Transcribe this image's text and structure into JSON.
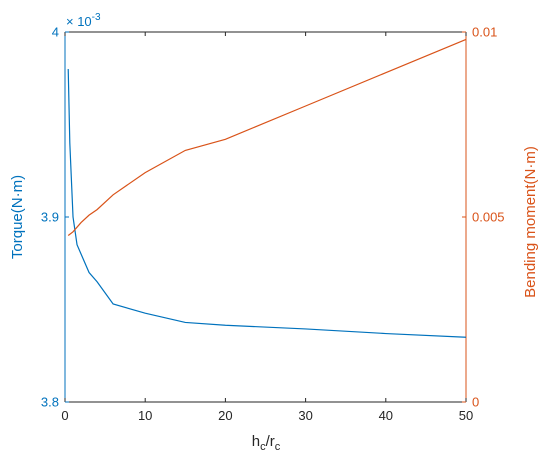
{
  "colors": {
    "left": "#0072BD",
    "right": "#D95319",
    "axis": "#262626",
    "background": "#ffffff"
  },
  "chart_data": {
    "type": "line",
    "title": "",
    "xlabel": {
      "main": "h",
      "sub1": "c",
      "sep": "/r",
      "sub2": "c"
    },
    "ylabel_left": "Torque(N·m)",
    "ylabel_right": "Bending moment(N·m)",
    "xlim": [
      0,
      50
    ],
    "ylim_left": [
      0.0038,
      0.004
    ],
    "ylim_right": [
      0,
      0.01
    ],
    "x_ticks": [
      "0",
      "10",
      "20",
      "30",
      "40",
      "50"
    ],
    "y_left_ticks": [
      "3.8",
      "3.9",
      "4"
    ],
    "y_left_multiplier": {
      "base": "× 10",
      "exp": "-3"
    },
    "y_right_ticks": [
      "0",
      "0.005",
      "0.01"
    ],
    "grid": false,
    "legend": "none",
    "series": [
      {
        "axis": "left",
        "x": [
          0.4,
          0.6,
          1.0,
          1.5,
          2,
          3,
          4,
          6,
          10,
          15,
          20,
          30,
          40,
          50
        ],
        "y": [
          0.00398,
          0.00394,
          0.0039,
          0.003885,
          0.00388,
          0.00387,
          0.003865,
          0.003853,
          0.003848,
          0.003843,
          0.0038415,
          0.0038395,
          0.003837,
          0.003835
        ]
      },
      {
        "axis": "right",
        "x": [
          0.4,
          1.0,
          2,
          3,
          4,
          6,
          10,
          15,
          20,
          30,
          40,
          50
        ],
        "y": [
          0.0045,
          0.0046,
          0.00485,
          0.00505,
          0.0052,
          0.0056,
          0.0062,
          0.0068,
          0.0071,
          0.008,
          0.0089,
          0.0098
        ]
      }
    ]
  }
}
